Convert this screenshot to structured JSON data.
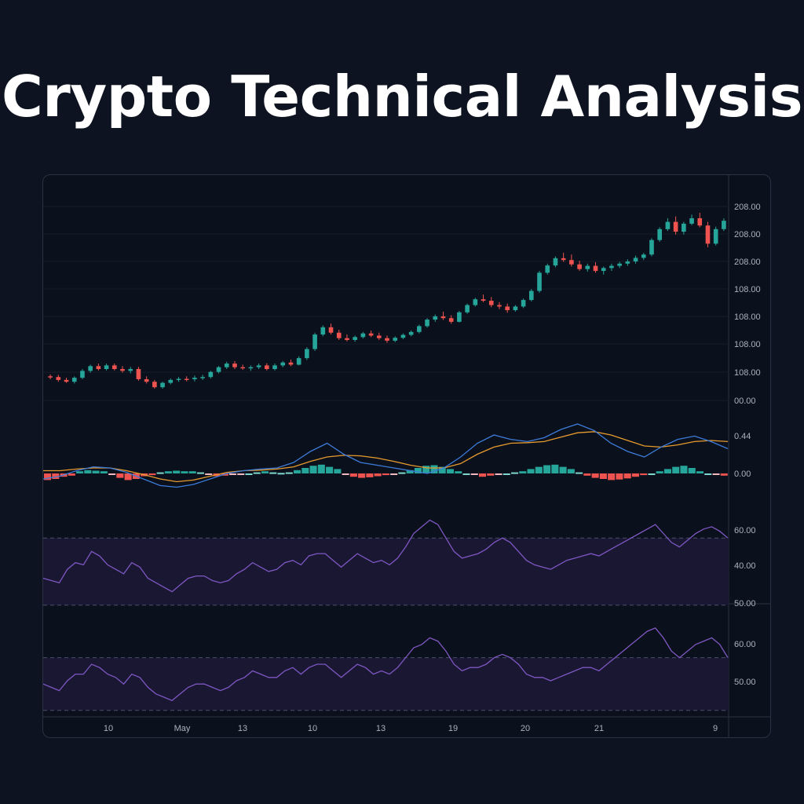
{
  "title": "Crypto Technical Analysis",
  "colors": {
    "background": "#0d1320",
    "panel": "#0b111c",
    "up": "#26a69a",
    "down": "#ef5350",
    "macd_line": "#3d7bd9",
    "signal_line": "#e69a2e",
    "rsi_line": "#7e57c2",
    "rsi_band": "#1a1733"
  },
  "x_axis": {
    "labels": [
      "10",
      "May",
      "13",
      "10",
      "13",
      "19",
      "20",
      "21",
      "9"
    ]
  },
  "chart_data": [
    {
      "type": "candlestick",
      "y_tick_labels": [
        "208.00",
        "208.00",
        "208.00",
        "108.00",
        "108.00",
        "108.00",
        "108.00",
        "00.00"
      ],
      "ohlc": [
        [
          0.7,
          0.75,
          0.62,
          0.68
        ],
        [
          0.68,
          0.74,
          0.55,
          0.6
        ],
        [
          0.6,
          0.66,
          0.52,
          0.55
        ],
        [
          0.55,
          0.7,
          0.5,
          0.66
        ],
        [
          0.66,
          0.9,
          0.62,
          0.85
        ],
        [
          0.85,
          1.02,
          0.8,
          0.98
        ],
        [
          0.98,
          1.05,
          0.86,
          0.9
        ],
        [
          0.9,
          1.05,
          0.86,
          1.0
        ],
        [
          1.0,
          1.05,
          0.86,
          0.9
        ],
        [
          0.9,
          0.98,
          0.8,
          0.85
        ],
        [
          0.85,
          0.96,
          0.78,
          0.9
        ],
        [
          0.9,
          0.96,
          0.58,
          0.62
        ],
        [
          0.62,
          0.7,
          0.5,
          0.55
        ],
        [
          0.55,
          0.6,
          0.36,
          0.4
        ],
        [
          0.4,
          0.55,
          0.36,
          0.52
        ],
        [
          0.52,
          0.64,
          0.48,
          0.6
        ],
        [
          0.6,
          0.68,
          0.55,
          0.63
        ],
        [
          0.63,
          0.7,
          0.56,
          0.62
        ],
        [
          0.62,
          0.72,
          0.56,
          0.66
        ],
        [
          0.66,
          0.74,
          0.6,
          0.68
        ],
        [
          0.68,
          0.85,
          0.64,
          0.82
        ],
        [
          0.82,
          0.98,
          0.78,
          0.95
        ],
        [
          0.95,
          1.1,
          0.9,
          1.05
        ],
        [
          1.05,
          1.12,
          0.9,
          0.95
        ],
        [
          0.95,
          1.02,
          0.88,
          0.92
        ],
        [
          0.92,
          1.0,
          0.85,
          0.95
        ],
        [
          0.95,
          1.05,
          0.9,
          1.0
        ],
        [
          1.0,
          1.06,
          0.86,
          0.9
        ],
        [
          0.9,
          1.05,
          0.86,
          1.0
        ],
        [
          1.0,
          1.12,
          0.95,
          1.08
        ],
        [
          1.08,
          1.16,
          0.98,
          1.02
        ],
        [
          1.02,
          1.25,
          1.0,
          1.2
        ],
        [
          1.2,
          1.5,
          1.15,
          1.45
        ],
        [
          1.45,
          1.9,
          1.4,
          1.85
        ],
        [
          1.85,
          2.1,
          1.8,
          2.05
        ],
        [
          2.05,
          2.15,
          1.85,
          1.9
        ],
        [
          1.9,
          1.98,
          1.7,
          1.75
        ],
        [
          1.75,
          1.85,
          1.66,
          1.7
        ],
        [
          1.7,
          1.82,
          1.65,
          1.78
        ],
        [
          1.78,
          1.92,
          1.74,
          1.88
        ],
        [
          1.88,
          1.96,
          1.78,
          1.82
        ],
        [
          1.82,
          1.9,
          1.7,
          1.75
        ],
        [
          1.75,
          1.82,
          1.62,
          1.68
        ],
        [
          1.68,
          1.8,
          1.64,
          1.76
        ],
        [
          1.76,
          1.88,
          1.72,
          1.84
        ],
        [
          1.84,
          1.96,
          1.8,
          1.92
        ],
        [
          1.92,
          2.12,
          1.88,
          2.08
        ],
        [
          2.08,
          2.3,
          2.04,
          2.26
        ],
        [
          2.26,
          2.4,
          2.2,
          2.35
        ],
        [
          2.35,
          2.48,
          2.25,
          2.3
        ],
        [
          2.3,
          2.38,
          2.15,
          2.2
        ],
        [
          2.2,
          2.5,
          2.18,
          2.46
        ],
        [
          2.46,
          2.7,
          2.42,
          2.66
        ],
        [
          2.66,
          2.86,
          2.62,
          2.82
        ],
        [
          2.82,
          2.95,
          2.74,
          2.78
        ],
        [
          2.78,
          2.88,
          2.6,
          2.66
        ],
        [
          2.66,
          2.74,
          2.55,
          2.62
        ],
        [
          2.62,
          2.7,
          2.45,
          2.52
        ],
        [
          2.52,
          2.66,
          2.48,
          2.62
        ],
        [
          2.62,
          2.84,
          2.58,
          2.8
        ],
        [
          2.8,
          3.1,
          2.76,
          3.05
        ],
        [
          3.05,
          3.6,
          3.0,
          3.55
        ],
        [
          3.55,
          3.8,
          3.5,
          3.75
        ],
        [
          3.75,
          4.0,
          3.7,
          3.95
        ],
        [
          3.95,
          4.1,
          3.85,
          3.9
        ],
        [
          3.9,
          4.05,
          3.72,
          3.78
        ],
        [
          3.78,
          3.88,
          3.6,
          3.65
        ],
        [
          3.65,
          3.8,
          3.58,
          3.74
        ],
        [
          3.74,
          3.84,
          3.55,
          3.6
        ],
        [
          3.6,
          3.72,
          3.5,
          3.68
        ],
        [
          3.68,
          3.8,
          3.6,
          3.74
        ],
        [
          3.74,
          3.85,
          3.68,
          3.8
        ],
        [
          3.8,
          3.92,
          3.74,
          3.86
        ],
        [
          3.86,
          4.02,
          3.8,
          3.96
        ],
        [
          3.96,
          4.1,
          3.9,
          4.05
        ],
        [
          4.05,
          4.5,
          4.0,
          4.45
        ],
        [
          4.45,
          4.8,
          4.4,
          4.75
        ],
        [
          4.75,
          5.05,
          4.7,
          4.95
        ],
        [
          4.95,
          5.1,
          4.6,
          4.68
        ],
        [
          4.68,
          4.95,
          4.6,
          4.9
        ],
        [
          4.9,
          5.15,
          4.86,
          5.05
        ],
        [
          5.05,
          5.2,
          4.8,
          4.85
        ],
        [
          4.85,
          4.95,
          4.25,
          4.35
        ],
        [
          4.35,
          4.82,
          4.3,
          4.75
        ],
        [
          4.75,
          5.05,
          4.7,
          4.98
        ]
      ]
    },
    {
      "type": "macd",
      "y_tick_labels": [
        "0.44",
        "0.00"
      ],
      "macd": [
        -0.1,
        -0.05,
        0.05,
        0.12,
        0.1,
        0.02,
        -0.1,
        -0.22,
        -0.25,
        -0.2,
        -0.1,
        0.0,
        0.05,
        0.08,
        0.1,
        0.2,
        0.4,
        0.55,
        0.35,
        0.2,
        0.15,
        0.1,
        0.05,
        0.0,
        0.1,
        0.3,
        0.55,
        0.7,
        0.62,
        0.58,
        0.65,
        0.8,
        0.9,
        0.78,
        0.55,
        0.4,
        0.3,
        0.48,
        0.62,
        0.68,
        0.58,
        0.45
      ],
      "signal": [
        0.05,
        0.05,
        0.08,
        0.1,
        0.1,
        0.05,
        -0.02,
        -0.1,
        -0.15,
        -0.12,
        -0.05,
        0.02,
        0.05,
        0.06,
        0.08,
        0.12,
        0.22,
        0.3,
        0.33,
        0.32,
        0.28,
        0.22,
        0.15,
        0.1,
        0.1,
        0.18,
        0.35,
        0.48,
        0.55,
        0.56,
        0.58,
        0.66,
        0.74,
        0.76,
        0.7,
        0.6,
        0.5,
        0.48,
        0.52,
        0.58,
        0.6,
        0.58
      ],
      "histogram": [
        -0.12,
        -0.1,
        -0.06,
        -0.04,
        0.04,
        0.06,
        0.05,
        0.04,
        -0.02,
        -0.08,
        -0.12,
        -0.1,
        -0.05,
        -0.03,
        0.02,
        0.04,
        0.05,
        0.04,
        0.04,
        0.02,
        -0.02,
        -0.05,
        -0.04,
        -0.02,
        -0.01,
        0.0,
        0.02,
        0.04,
        0.02,
        0.01,
        0.02,
        0.06,
        0.1,
        0.14,
        0.16,
        0.12,
        0.08,
        -0.02,
        -0.06,
        -0.08,
        -0.07,
        -0.05,
        -0.03,
        -0.02,
        0.02,
        0.06,
        0.1,
        0.14,
        0.15,
        0.12,
        0.08,
        0.04,
        0.0,
        -0.02,
        -0.06,
        -0.04,
        -0.02,
        0.0,
        0.02,
        0.04,
        0.08,
        0.12,
        0.15,
        0.16,
        0.12,
        0.08,
        0.02,
        -0.04,
        -0.08,
        -0.1,
        -0.12,
        -0.11,
        -0.09,
        -0.06,
        -0.03,
        0.0,
        0.04,
        0.08,
        0.12,
        0.14,
        0.1,
        0.04,
        0.0,
        -0.02,
        -0.04
      ]
    },
    {
      "type": "line",
      "name": "RSI",
      "y_tick_labels": [
        "60.00",
        "40.00",
        "50.00"
      ],
      "band": [
        34,
        64
      ],
      "values": [
        46,
        45,
        44,
        50,
        53,
        52,
        58,
        56,
        52,
        50,
        48,
        53,
        51,
        46,
        44,
        42,
        40,
        43,
        46,
        47,
        47,
        45,
        44,
        45,
        48,
        50,
        53,
        51,
        49,
        50,
        53,
        54,
        52,
        56,
        57,
        57,
        54,
        51,
        54,
        57,
        55,
        53,
        54,
        52,
        55,
        60,
        66,
        69,
        72,
        70,
        64,
        58,
        55,
        56,
        57,
        59,
        62,
        64,
        62,
        58,
        54,
        52,
        51,
        50,
        52,
        54,
        55,
        56,
        57,
        56,
        58,
        60,
        62,
        64,
        66,
        68,
        70,
        66,
        62,
        60,
        63,
        66,
        68,
        69,
        67,
        64
      ]
    },
    {
      "type": "line",
      "name": "RSI",
      "y_tick_labels": [
        "60.00",
        "50.00"
      ],
      "band": [
        44,
        60
      ],
      "values": [
        52,
        51,
        50,
        53,
        55,
        55,
        58,
        57,
        55,
        54,
        52,
        55,
        54,
        51,
        49,
        48,
        47,
        49,
        51,
        52,
        52,
        51,
        50,
        51,
        53,
        54,
        56,
        55,
        54,
        54,
        56,
        57,
        55,
        57,
        58,
        58,
        56,
        54,
        56,
        58,
        57,
        55,
        56,
        55,
        57,
        60,
        63,
        64,
        66,
        65,
        62,
        58,
        56,
        57,
        57,
        58,
        60,
        61,
        60,
        58,
        55,
        54,
        54,
        53,
        54,
        55,
        56,
        57,
        57,
        56,
        58,
        60,
        62,
        64,
        66,
        68,
        69,
        66,
        62,
        60,
        62,
        64,
        65,
        66,
        64,
        60
      ]
    }
  ]
}
